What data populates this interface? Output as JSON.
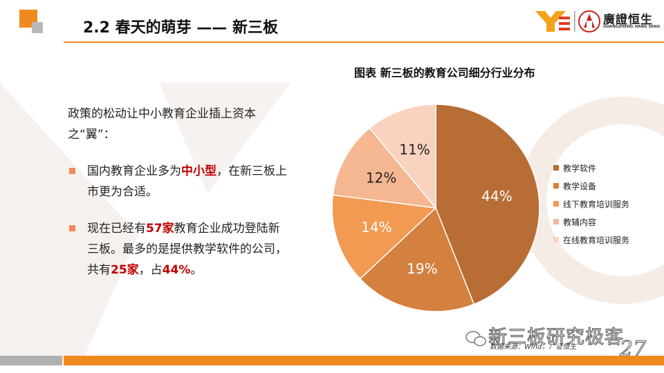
{
  "slide": {
    "title": "2.2 春天的萌芽 —— 新三板",
    "logo_text": "廣證恒生",
    "logo_subtext": "GUANGZHENG HANG SENG",
    "page_number": "27"
  },
  "content": {
    "intro": "政策的松动让中小教育企业插上资本之“翼”：",
    "bullet1": {
      "p1": "国内教育企业多为",
      "h1": "中小型",
      "p2": "，在新三板上市更为合适。"
    },
    "bullet2": {
      "p1": "现在已经有",
      "h1": "57家",
      "p2": "教育企业成功登陆新三板。最多的是提供教学软件的公司，共有",
      "h2": "25家",
      "p3": "，占",
      "h3": "44%",
      "p4": "。"
    }
  },
  "footer": {
    "wechat_text": "新三板研究极客",
    "source": "数据来源：Wind，广证恒生"
  },
  "chart_data": {
    "type": "pie",
    "title": "图表 新三板的教育公司细分行业分布",
    "categories": [
      "教学软件",
      "教学设备",
      "线下教育培训服务",
      "教辅内容",
      "在线教育培训服务"
    ],
    "values": [
      44,
      19,
      14,
      12,
      11
    ],
    "labels": [
      "44%",
      "19%",
      "14%",
      "12%",
      "11%"
    ],
    "colors": [
      "#b86d35",
      "#d4803f",
      "#f29a52",
      "#f5b791",
      "#fad3c0"
    ],
    "legend": "right"
  }
}
